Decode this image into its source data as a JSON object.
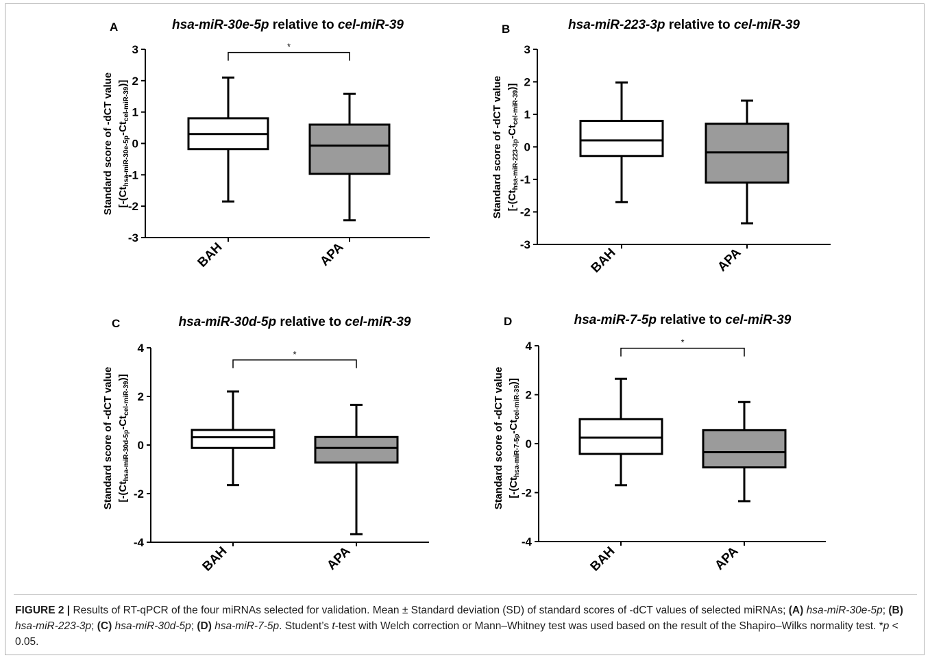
{
  "figure": {
    "panels": [
      {
        "letter": "A",
        "title_italic_1": "hsa-miR-30e-5p",
        "title_mid": " relative to ",
        "title_italic_2": "cel-miR-39",
        "ylabel_line1": "Standard score of -dCT value",
        "ylabel_line2_pre": "[-(Ct",
        "ylabel_sub1": "hsa-miR-30e-5p",
        "ylabel_mid": "-Ct",
        "ylabel_sub2": "cel-miR-39",
        "ylabel_end": ")]"
      },
      {
        "letter": "B",
        "title_italic_1": "hsa-miR-223-3p",
        "title_mid": " relative to ",
        "title_italic_2": "cel-miR-39",
        "ylabel_line1": "Standard score of -dCT value",
        "ylabel_line2_pre": "[-(Ct",
        "ylabel_sub1": "hsa-miR-223-3p",
        "ylabel_mid": "-Ct",
        "ylabel_sub2": "cel-miR-39",
        "ylabel_end": ")]"
      },
      {
        "letter": "C",
        "title_italic_1": "hsa-miR-30d-5p",
        "title_mid": " relative to ",
        "title_italic_2": "cel-miR-39",
        "ylabel_line1": "Standard score of -dCT value",
        "ylabel_line2_pre": "[-(Ct",
        "ylabel_sub1": "hsa-miR-30d-5p",
        "ylabel_mid": "-Ct",
        "ylabel_sub2": "cel-miR-39",
        "ylabel_end": ")]"
      },
      {
        "letter": "D",
        "title_italic_1": "hsa-miR-7-5p",
        "title_mid": " relative to ",
        "title_italic_2": "cel-miR-39",
        "ylabel_line1": "Standard score of -dCT value",
        "ylabel_line2_pre": "[-(Ct",
        "ylabel_sub1": "hsa-miR-7-5p",
        "ylabel_mid": "-Ct",
        "ylabel_sub2": "cel-miR-39",
        "ylabel_end": ")]"
      }
    ]
  },
  "caption": {
    "label": "FIGURE 2 |",
    "text1": " Results of RT-qPCR of the four miRNAs selected for validation. Mean ± Standard deviation (SD) of standard scores of -dCT values of selected miRNAs; ",
    "a_label": "(A)",
    "a_name": "hsa-miR-30e-5p",
    "b_label": "(B)",
    "b_name": "hsa-miR-223-3p",
    "c_label": "(C)",
    "c_name": "hsa-miR-30d-5p",
    "d_label": "(D)",
    "d_name": "hsa-miR-7-5p",
    "sep": "; ",
    "text2": ". Student’s ",
    "t_italic": "t",
    "text3": "-test with Welch correction or Mann–Whitney test was used based on the result of the Shapiro–Wilks normality test. *",
    "p_italic": "p",
    "text4": " < 0.05."
  },
  "colors": {
    "apa_fill": "#9b9b9b",
    "bah_fill": "#ffffff",
    "stroke": "#000000"
  },
  "chart_data": [
    {
      "type": "box",
      "panel": "A",
      "categories": [
        "BAH",
        "APA"
      ],
      "ylim": [
        -3,
        3
      ],
      "yticks": [
        -3,
        -2,
        -1,
        0,
        1,
        2,
        3
      ],
      "series": [
        {
          "category": "BAH",
          "min": -1.85,
          "q1": -0.18,
          "median": 0.3,
          "q3": 0.8,
          "max": 2.1
        },
        {
          "category": "APA",
          "min": -2.45,
          "q1": -0.97,
          "median": -0.07,
          "q3": 0.6,
          "max": 1.58
        }
      ],
      "significance": {
        "label": "*",
        "between": [
          "BAH",
          "APA"
        ],
        "y": 2.9
      }
    },
    {
      "type": "box",
      "panel": "B",
      "categories": [
        "BAH",
        "APA"
      ],
      "ylim": [
        -3,
        3
      ],
      "yticks": [
        -3,
        -2,
        -1,
        0,
        1,
        2,
        3
      ],
      "series": [
        {
          "category": "BAH",
          "min": -1.7,
          "q1": -0.28,
          "median": 0.2,
          "q3": 0.8,
          "max": 1.98
        },
        {
          "category": "APA",
          "min": -2.35,
          "q1": -1.1,
          "median": -0.17,
          "q3": 0.71,
          "max": 1.42
        }
      ],
      "significance": null
    },
    {
      "type": "box",
      "panel": "C",
      "categories": [
        "BAH",
        "APA"
      ],
      "ylim": [
        -4,
        4
      ],
      "yticks": [
        -4,
        -2,
        0,
        2,
        4
      ],
      "series": [
        {
          "category": "BAH",
          "min": -1.65,
          "q1": -0.12,
          "median": 0.32,
          "q3": 0.62,
          "max": 2.2
        },
        {
          "category": "APA",
          "min": -3.67,
          "q1": -0.72,
          "median": -0.12,
          "q3": 0.33,
          "max": 1.65
        }
      ],
      "significance": {
        "label": "*",
        "between": [
          "BAH",
          "APA"
        ],
        "y": 3.5
      }
    },
    {
      "type": "box",
      "panel": "D",
      "categories": [
        "BAH",
        "APA"
      ],
      "ylim": [
        -4,
        4
      ],
      "yticks": [
        -4,
        -2,
        0,
        2,
        4
      ],
      "series": [
        {
          "category": "BAH",
          "min": -1.7,
          "q1": -0.42,
          "median": 0.25,
          "q3": 1.0,
          "max": 2.65
        },
        {
          "category": "APA",
          "min": -2.35,
          "q1": -0.97,
          "median": -0.35,
          "q3": 0.55,
          "max": 1.7
        }
      ],
      "significance": {
        "label": "*",
        "between": [
          "BAH",
          "APA"
        ],
        "y": 3.9
      }
    }
  ]
}
